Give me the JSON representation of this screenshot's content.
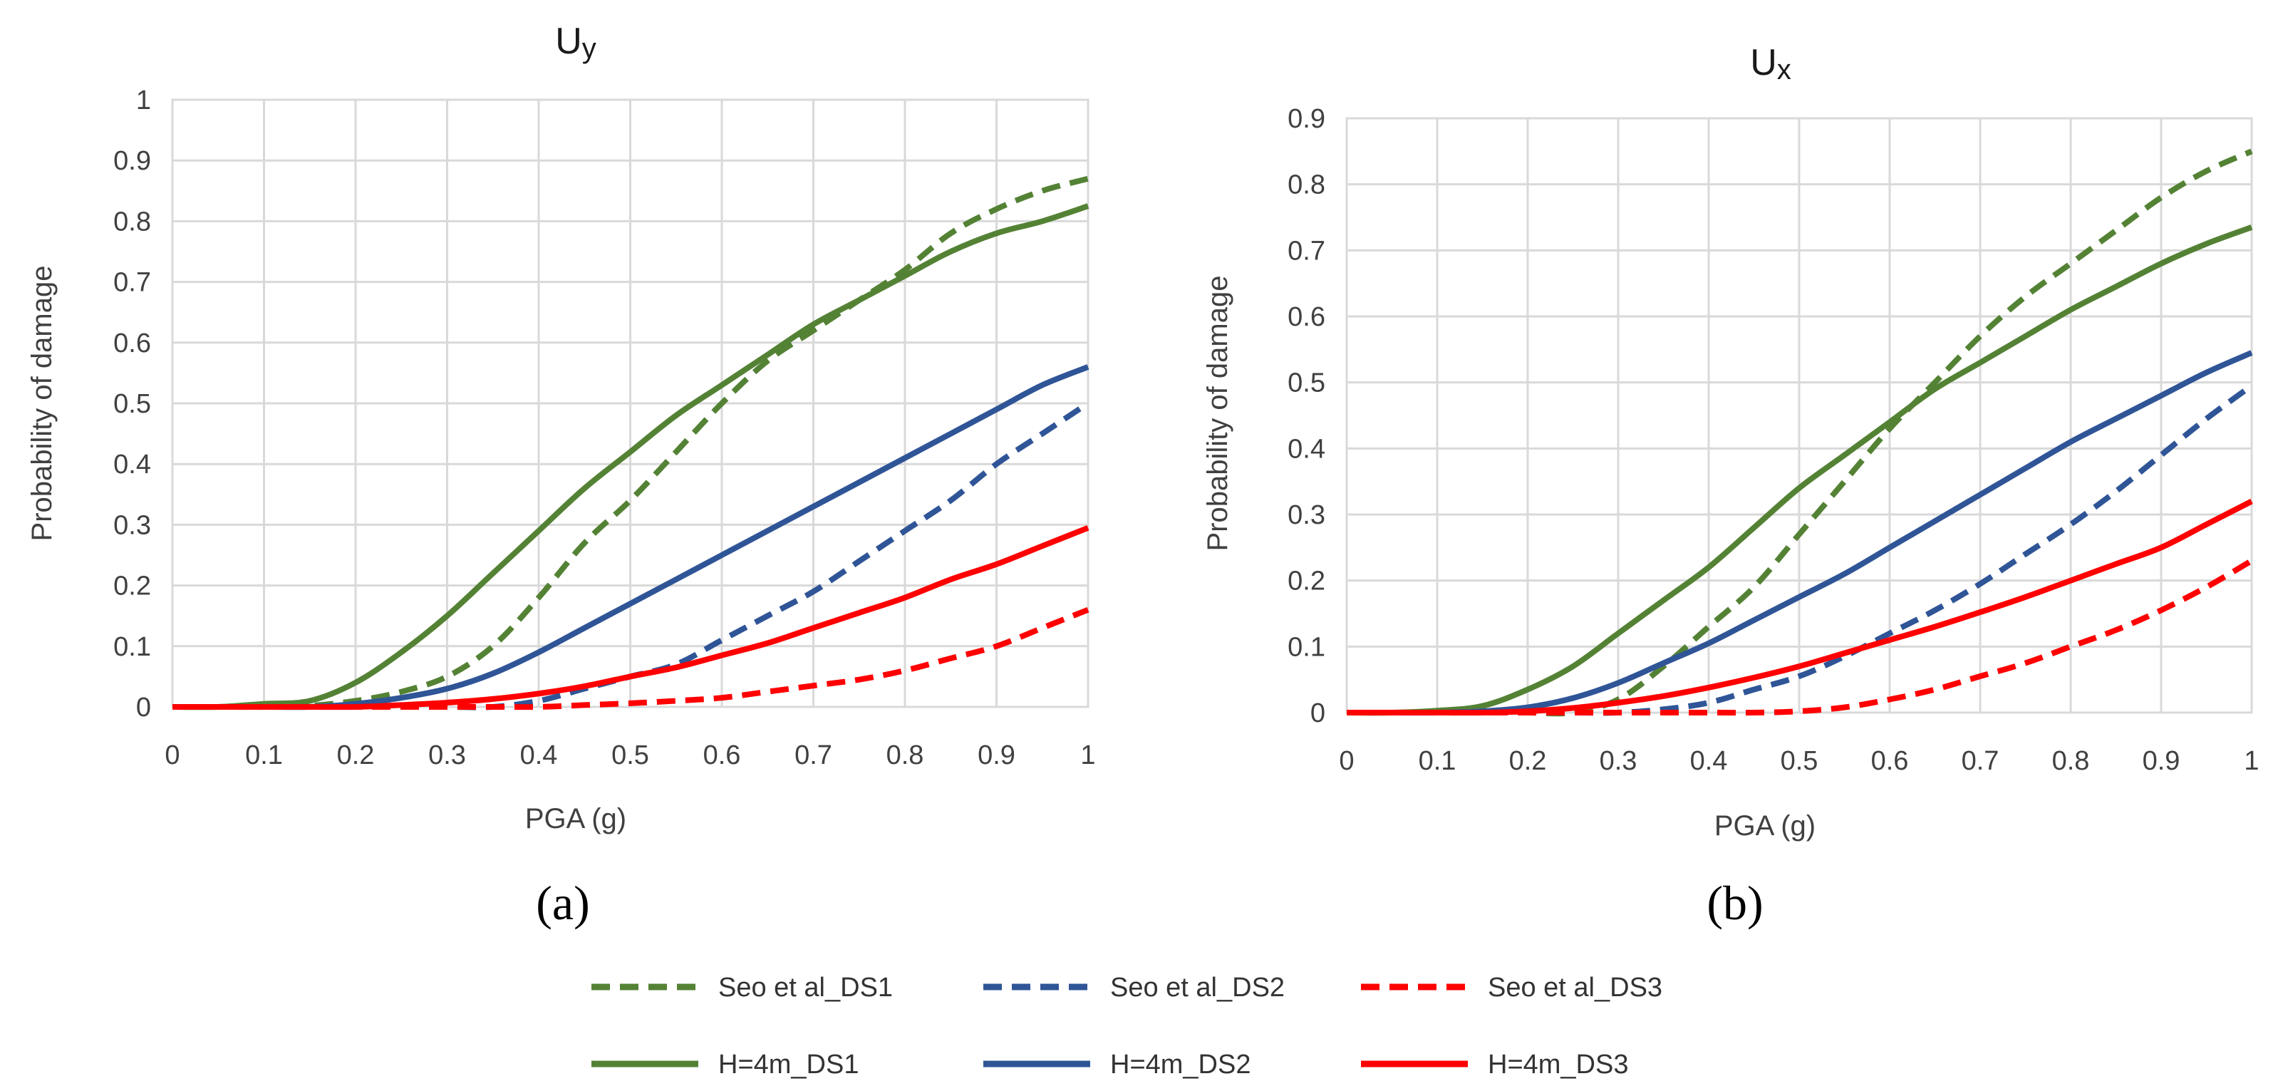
{
  "legend": [
    {
      "name": "Seo et al_DS1",
      "color": "#548235",
      "dash": true
    },
    {
      "name": "Seo et al_DS2",
      "color": "#2F5597",
      "dash": true
    },
    {
      "name": "Seo et al_DS3",
      "color": "#FF0000",
      "dash": true
    },
    {
      "name": "H=4m_DS1",
      "color": "#548235",
      "dash": false
    },
    {
      "name": "H=4m_DS2",
      "color": "#2F5597",
      "dash": false
    },
    {
      "name": "H=4m_DS3",
      "color": "#FF0000",
      "dash": false
    }
  ],
  "chart_data": [
    {
      "type": "line",
      "panel_label": "(a)",
      "title": "Uy",
      "title_main": "U",
      "title_sub": "y",
      "xlabel": "PGA (g)",
      "ylabel": "Probability of damage",
      "xlim": [
        0,
        1
      ],
      "ylim": [
        0,
        1
      ],
      "xticks": [
        0,
        0.1,
        0.2,
        0.3,
        0.4,
        0.5,
        0.6,
        0.7,
        0.8,
        0.9,
        1
      ],
      "xtick_labels": [
        "0",
        "0.1",
        "0.2",
        "0.3",
        "0.4",
        "0.5",
        "0.6",
        "0.7",
        "0.8",
        "0.9",
        "1"
      ],
      "yticks": [
        0,
        0.1,
        0.2,
        0.3,
        0.4,
        0.5,
        0.6,
        0.7,
        0.8,
        0.9,
        1
      ],
      "ytick_labels": [
        "0",
        "0.1",
        "0.2",
        "0.3",
        "0.4",
        "0.5",
        "0.6",
        "0.7",
        "0.8",
        "0.9",
        "1"
      ],
      "grid": true,
      "x": [
        0,
        0.05,
        0.1,
        0.15,
        0.2,
        0.25,
        0.3,
        0.35,
        0.4,
        0.45,
        0.5,
        0.55,
        0.6,
        0.65,
        0.7,
        0.75,
        0.8,
        0.85,
        0.9,
        0.95,
        1
      ],
      "series": [
        {
          "name": "Seo et al_DS1",
          "color": "#548235",
          "dash": true,
          "values": [
            0,
            0,
            0,
            0.002,
            0.01,
            0.025,
            0.05,
            0.1,
            0.18,
            0.27,
            0.34,
            0.42,
            0.5,
            0.57,
            0.62,
            0.67,
            0.72,
            0.78,
            0.82,
            0.85,
            0.87
          ]
        },
        {
          "name": "Seo et al_DS2",
          "color": "#2F5597",
          "dash": true,
          "values": [
            0,
            0,
            0,
            0,
            0,
            0,
            0,
            0,
            0.01,
            0.03,
            0.05,
            0.07,
            0.11,
            0.15,
            0.19,
            0.24,
            0.29,
            0.34,
            0.4,
            0.45,
            0.5
          ]
        },
        {
          "name": "Seo et al_DS3",
          "color": "#FF0000",
          "dash": true,
          "values": [
            0,
            0,
            0,
            0,
            0,
            0,
            0,
            0,
            0,
            0.003,
            0.006,
            0.01,
            0.015,
            0.025,
            0.035,
            0.045,
            0.06,
            0.08,
            0.1,
            0.13,
            0.16
          ]
        },
        {
          "name": "H=4m_DS1",
          "color": "#548235",
          "dash": false,
          "values": [
            0,
            0,
            0.005,
            0.01,
            0.04,
            0.09,
            0.15,
            0.22,
            0.29,
            0.36,
            0.42,
            0.48,
            0.53,
            0.58,
            0.63,
            0.67,
            0.71,
            0.75,
            0.78,
            0.8,
            0.825
          ]
        },
        {
          "name": "H=4m_DS2",
          "color": "#2F5597",
          "dash": false,
          "values": [
            0,
            0,
            0,
            0,
            0.005,
            0.015,
            0.03,
            0.055,
            0.09,
            0.13,
            0.17,
            0.21,
            0.25,
            0.29,
            0.33,
            0.37,
            0.41,
            0.45,
            0.49,
            0.53,
            0.56
          ]
        },
        {
          "name": "H=4m_DS3",
          "color": "#FF0000",
          "dash": false,
          "values": [
            0,
            0,
            0,
            0,
            0,
            0.003,
            0.007,
            0.013,
            0.022,
            0.034,
            0.05,
            0.065,
            0.085,
            0.105,
            0.13,
            0.155,
            0.18,
            0.21,
            0.235,
            0.265,
            0.295
          ]
        }
      ]
    },
    {
      "type": "line",
      "panel_label": "(b)",
      "title": "Ux",
      "title_main": "U",
      "title_sub": "x",
      "xlabel": "PGA (g)",
      "ylabel": "Probability of damage",
      "xlim": [
        0,
        1
      ],
      "ylim": [
        0,
        0.9
      ],
      "xticks": [
        0,
        0.1,
        0.2,
        0.3,
        0.4,
        0.5,
        0.6,
        0.7,
        0.8,
        0.9,
        1
      ],
      "xtick_labels": [
        "0",
        "0.1",
        "0.2",
        "0.3",
        "0.4",
        "0.5",
        "0.6",
        "0.7",
        "0.8",
        "0.9",
        "1"
      ],
      "yticks": [
        0,
        0.1,
        0.2,
        0.3,
        0.4,
        0.5,
        0.6,
        0.7,
        0.8,
        0.9
      ],
      "ytick_labels": [
        "0",
        "0.1",
        "0.2",
        "0.3",
        "0.4",
        "0.5",
        "0.6",
        "0.7",
        "0.8",
        "0.9"
      ],
      "grid": true,
      "x": [
        0,
        0.05,
        0.1,
        0.15,
        0.2,
        0.25,
        0.3,
        0.35,
        0.4,
        0.45,
        0.5,
        0.55,
        0.6,
        0.65,
        0.7,
        0.75,
        0.8,
        0.85,
        0.9,
        0.95,
        1
      ],
      "series": [
        {
          "name": "Seo et al_DS1",
          "color": "#548235",
          "dash": true,
          "values": [
            0,
            0,
            0,
            0,
            0,
            0,
            0.02,
            0.07,
            0.13,
            0.19,
            0.27,
            0.35,
            0.43,
            0.5,
            0.57,
            0.63,
            0.68,
            0.73,
            0.78,
            0.82,
            0.85
          ]
        },
        {
          "name": "Seo et al_DS2",
          "color": "#2F5597",
          "dash": true,
          "values": [
            0,
            0,
            0,
            0,
            0,
            0,
            0,
            0.005,
            0.015,
            0.035,
            0.055,
            0.085,
            0.12,
            0.155,
            0.195,
            0.24,
            0.285,
            0.335,
            0.39,
            0.445,
            0.495
          ]
        },
        {
          "name": "Seo et al_DS3",
          "color": "#FF0000",
          "dash": true,
          "values": [
            0,
            0,
            0,
            0,
            0,
            0,
            0,
            0,
            0,
            0,
            0.002,
            0.008,
            0.02,
            0.035,
            0.055,
            0.075,
            0.1,
            0.125,
            0.155,
            0.19,
            0.23
          ]
        },
        {
          "name": "H=4m_DS1",
          "color": "#548235",
          "dash": false,
          "values": [
            0,
            0,
            0.003,
            0.01,
            0.035,
            0.07,
            0.12,
            0.17,
            0.22,
            0.28,
            0.34,
            0.39,
            0.44,
            0.49,
            0.53,
            0.57,
            0.61,
            0.645,
            0.68,
            0.71,
            0.735
          ]
        },
        {
          "name": "H=4m_DS2",
          "color": "#2F5597",
          "dash": false,
          "values": [
            0,
            0,
            0,
            0.002,
            0.008,
            0.022,
            0.045,
            0.075,
            0.105,
            0.14,
            0.175,
            0.21,
            0.25,
            0.29,
            0.33,
            0.37,
            0.41,
            0.445,
            0.48,
            0.515,
            0.545
          ]
        },
        {
          "name": "H=4m_DS3",
          "color": "#FF0000",
          "dash": false,
          "values": [
            0,
            0,
            0,
            0,
            0.002,
            0.007,
            0.015,
            0.025,
            0.038,
            0.053,
            0.07,
            0.09,
            0.11,
            0.13,
            0.152,
            0.175,
            0.2,
            0.225,
            0.25,
            0.285,
            0.32
          ]
        }
      ]
    }
  ]
}
